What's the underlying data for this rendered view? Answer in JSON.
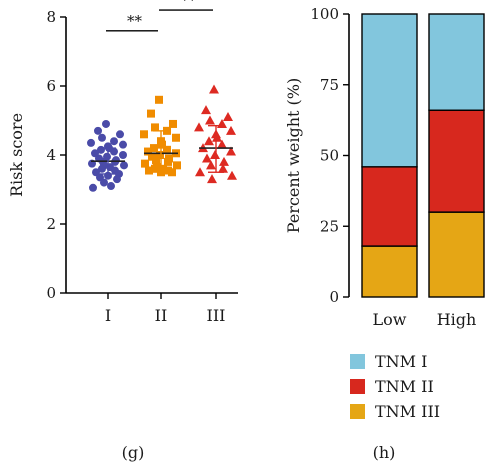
{
  "panels": [
    {
      "label": "(g)"
    },
    {
      "label": "(h)"
    }
  ],
  "chart_data": [
    {
      "type": "scatter",
      "ylabel": "Risk score",
      "ylim": [
        0,
        8
      ],
      "yticks": [
        "0",
        "2",
        "4",
        "6",
        "8"
      ],
      "categories": [
        "I",
        "II",
        "III"
      ],
      "series": [
        {
          "category": "I",
          "marker": "circle",
          "color": "#4a4ba8",
          "mean": 3.82,
          "sd_low": 3.45,
          "sd_high": 4.2,
          "values": [
            4.9,
            4.7,
            4.6,
            4.5,
            4.4,
            4.35,
            4.3,
            4.25,
            4.2,
            4.15,
            4.1,
            4.05,
            4.0,
            3.95,
            3.9,
            3.85,
            3.8,
            3.8,
            3.75,
            3.7,
            3.7,
            3.65,
            3.6,
            3.55,
            3.5,
            3.45,
            3.4,
            3.35,
            3.3,
            3.2,
            3.1,
            3.05
          ]
        },
        {
          "category": "II",
          "marker": "square",
          "color": "#f08c00",
          "mean": 4.05,
          "sd_low": 3.55,
          "sd_high": 4.7,
          "values": [
            5.6,
            5.2,
            4.9,
            4.8,
            4.7,
            4.6,
            4.5,
            4.4,
            4.3,
            4.2,
            4.15,
            4.1,
            4.05,
            4.0,
            3.95,
            3.9,
            3.85,
            3.8,
            3.75,
            3.7,
            3.65,
            3.6,
            3.6,
            3.55,
            3.55,
            3.5,
            3.5
          ]
        },
        {
          "category": "III",
          "marker": "triangle",
          "color": "#dd2a22",
          "mean": 4.2,
          "sd_low": 3.5,
          "sd_high": 4.85,
          "values": [
            5.9,
            5.3,
            5.1,
            5.0,
            4.9,
            4.8,
            4.7,
            4.6,
            4.5,
            4.4,
            4.3,
            4.2,
            4.1,
            4.0,
            3.9,
            3.8,
            3.7,
            3.6,
            3.5,
            3.4,
            3.3
          ]
        }
      ],
      "annotations": [
        {
          "text": "**",
          "from": "I",
          "to": "II",
          "y": 7.6
        },
        {
          "text": "**",
          "from": "II",
          "to": "III",
          "y": 8.2
        }
      ]
    },
    {
      "type": "bar",
      "stacked": true,
      "ylabel": "Percent weight (%)",
      "ylim": [
        0,
        100
      ],
      "yticks": [
        "0",
        "25",
        "50",
        "75",
        "100"
      ],
      "categories": [
        "Low",
        "High"
      ],
      "series": [
        {
          "name": "TNM III",
          "color": "#e5a615",
          "values": [
            18,
            30
          ]
        },
        {
          "name": "TNM II",
          "color": "#d7281e",
          "values": [
            28,
            36
          ]
        },
        {
          "name": "TNM I",
          "color": "#82c6dd",
          "values": [
            54,
            34
          ]
        }
      ],
      "legend": {
        "placement": "bottom",
        "order": [
          "TNM I",
          "TNM II",
          "TNM III"
        ]
      }
    }
  ]
}
